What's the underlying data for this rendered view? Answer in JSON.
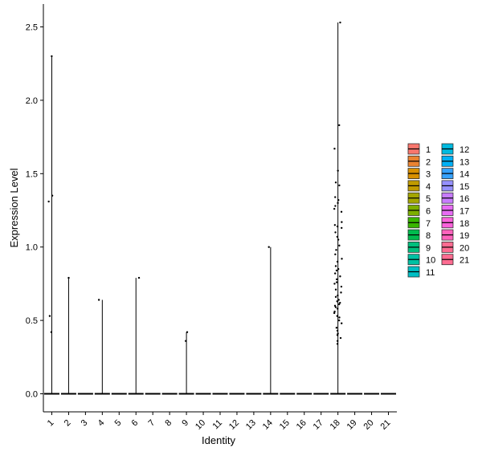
{
  "chart_data": {
    "type": "violin",
    "title": "",
    "xlabel": "Identity",
    "ylabel": "Expression Level",
    "ylim": [
      -0.12,
      2.6
    ],
    "y_ticks": [
      "0.0",
      "0.5",
      "1.0",
      "1.5",
      "2.0",
      "2.5"
    ],
    "categories": [
      "1",
      "2",
      "3",
      "4",
      "5",
      "6",
      "7",
      "8",
      "9",
      "10",
      "11",
      "12",
      "13",
      "14",
      "15",
      "16",
      "17",
      "18",
      "19",
      "20",
      "21"
    ],
    "colors": [
      "#F8766D",
      "#EA8331",
      "#D89000",
      "#C09B00",
      "#A3A500",
      "#7CAE00",
      "#39B600",
      "#00BB4E",
      "#00BF7D",
      "#00C1A3",
      "#00BFC4",
      "#00BAE0",
      "#00B0F6",
      "#35A2FF",
      "#9590FF",
      "#C77CFF",
      "#E76BF3",
      "#FA62DB",
      "#FF62BC",
      "#FF6C91",
      "#FF6C91"
    ],
    "max_values": [
      2.3,
      0.79,
      0.0,
      0.64,
      0.0,
      0.79,
      0.0,
      0.0,
      0.42,
      0.0,
      0.0,
      0.0,
      0.0,
      1.0,
      0.0,
      0.0,
      0.0,
      2.53,
      0.0,
      0.0,
      0.0
    ],
    "points": [
      {
        "cluster": "1",
        "values": [
          2.3,
          1.35,
          1.31,
          0.53,
          0.42
        ]
      },
      {
        "cluster": "2",
        "values": [
          0.79
        ]
      },
      {
        "cluster": "4",
        "values": [
          0.64
        ]
      },
      {
        "cluster": "6",
        "values": [
          0.79
        ]
      },
      {
        "cluster": "9",
        "values": [
          0.42,
          0.36
        ]
      },
      {
        "cluster": "14",
        "values": [
          1.0
        ]
      },
      {
        "cluster": "18",
        "values": [
          2.53,
          1.83,
          1.67,
          1.52,
          1.44,
          1.42,
          1.34,
          1.32,
          1.3,
          1.28,
          1.26,
          1.24,
          1.17,
          1.15,
          1.14,
          1.13,
          1.1,
          1.07,
          1.05,
          1.01,
          0.98,
          0.95,
          0.92,
          0.9,
          0.87,
          0.85,
          0.84,
          0.82,
          0.8,
          0.78,
          0.76,
          0.75,
          0.73,
          0.71,
          0.69,
          0.67,
          0.66,
          0.64,
          0.63,
          0.62,
          0.61,
          0.6,
          0.59,
          0.58,
          0.56,
          0.55,
          0.53,
          0.52,
          0.5,
          0.48,
          0.45,
          0.43,
          0.41,
          0.4,
          0.38,
          0.36,
          0.34
        ]
      }
    ],
    "legend": {
      "position": "right",
      "entries": [
        "1",
        "2",
        "3",
        "4",
        "5",
        "6",
        "7",
        "8",
        "9",
        "10",
        "11",
        "12",
        "13",
        "14",
        "15",
        "16",
        "17",
        "18",
        "19",
        "20",
        "21"
      ]
    },
    "grid": false
  }
}
